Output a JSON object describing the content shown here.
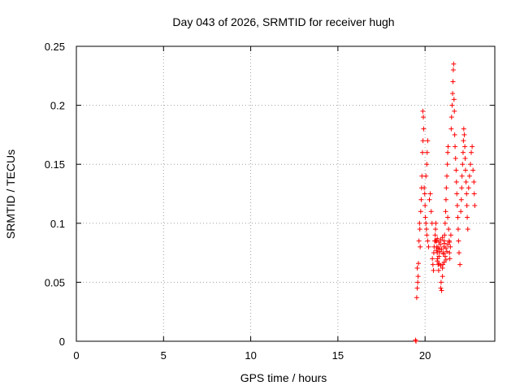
{
  "chart_data": {
    "type": "scatter",
    "title": "Day 043 of 2026, SRMTID for receiver hugh",
    "xlabel": "GPS time / hours",
    "ylabel": "SRMTID / TECUs",
    "xlim": [
      0,
      24
    ],
    "ylim": [
      0,
      0.25
    ],
    "xticks": [
      0,
      5,
      10,
      15,
      20
    ],
    "xtick_labels": [
      "0",
      "5",
      "10",
      "15",
      "20"
    ],
    "yticks": [
      0,
      0.05,
      0.1,
      0.15,
      0.2,
      0.25
    ],
    "ytick_labels": [
      "0",
      "0.05",
      "0.1",
      "0.15",
      "0.2",
      "0.25"
    ],
    "grid": true,
    "marker": "+",
    "series": [
      {
        "name": "SRMTID",
        "color": "#ff0000",
        "points": [
          [
            19.45,
            0.001
          ],
          [
            19.48,
            0.0
          ],
          [
            19.52,
            0.037
          ],
          [
            19.55,
            0.045
          ],
          [
            19.58,
            0.05
          ],
          [
            19.6,
            0.055
          ],
          [
            19.55,
            0.062
          ],
          [
            19.62,
            0.066
          ],
          [
            19.65,
            0.085
          ],
          [
            19.7,
            0.095
          ],
          [
            19.68,
            0.1
          ],
          [
            19.75,
            0.11
          ],
          [
            19.78,
            0.12
          ],
          [
            19.72,
            0.08
          ],
          [
            19.8,
            0.13
          ],
          [
            19.82,
            0.14
          ],
          [
            19.85,
            0.16
          ],
          [
            19.88,
            0.17
          ],
          [
            19.9,
            0.19
          ],
          [
            19.87,
            0.195
          ],
          [
            19.92,
            0.18
          ],
          [
            19.95,
            0.13
          ],
          [
            19.98,
            0.125
          ],
          [
            20.0,
            0.115
          ],
          [
            20.02,
            0.105
          ],
          [
            20.05,
            0.1
          ],
          [
            20.08,
            0.095
          ],
          [
            20.1,
            0.09
          ],
          [
            20.05,
            0.14
          ],
          [
            20.1,
            0.15
          ],
          [
            20.12,
            0.16
          ],
          [
            20.15,
            0.17
          ],
          [
            20.15,
            0.085
          ],
          [
            20.2,
            0.08
          ],
          [
            20.25,
            0.12
          ],
          [
            20.3,
            0.125
          ],
          [
            20.35,
            0.11
          ],
          [
            20.4,
            0.1
          ],
          [
            20.42,
            0.07
          ],
          [
            20.45,
            0.065
          ],
          [
            20.48,
            0.06
          ],
          [
            20.5,
            0.075
          ],
          [
            20.52,
            0.08
          ],
          [
            20.55,
            0.085
          ],
          [
            20.58,
            0.09
          ],
          [
            20.6,
            0.095
          ],
          [
            20.62,
            0.1
          ],
          [
            20.65,
            0.085
          ],
          [
            20.68,
            0.08
          ],
          [
            20.7,
            0.075
          ],
          [
            20.72,
            0.07
          ],
          [
            20.75,
            0.065
          ],
          [
            20.78,
            0.06
          ],
          [
            20.8,
            0.072
          ],
          [
            20.85,
            0.078
          ],
          [
            20.88,
            0.082
          ],
          [
            20.9,
            0.045
          ],
          [
            20.92,
            0.05
          ],
          [
            20.95,
            0.043
          ],
          [
            21.0,
            0.055
          ],
          [
            21.02,
            0.065
          ],
          [
            21.05,
            0.075
          ],
          [
            21.08,
            0.08
          ],
          [
            21.1,
            0.085
          ],
          [
            21.12,
            0.09
          ],
          [
            21.15,
            0.1
          ],
          [
            21.18,
            0.11
          ],
          [
            21.2,
            0.12
          ],
          [
            21.22,
            0.13
          ],
          [
            21.25,
            0.14
          ],
          [
            21.28,
            0.15
          ],
          [
            21.3,
            0.16
          ],
          [
            21.32,
            0.165
          ],
          [
            21.3,
            0.105
          ],
          [
            21.35,
            0.095
          ],
          [
            21.38,
            0.085
          ],
          [
            21.4,
            0.075
          ],
          [
            21.42,
            0.07
          ],
          [
            21.45,
            0.08
          ],
          [
            21.48,
            0.09
          ],
          [
            21.5,
            0.18
          ],
          [
            21.52,
            0.19
          ],
          [
            21.55,
            0.2
          ],
          [
            21.58,
            0.21
          ],
          [
            21.6,
            0.22
          ],
          [
            21.62,
            0.23
          ],
          [
            21.64,
            0.235
          ],
          [
            21.66,
            0.205
          ],
          [
            21.68,
            0.195
          ],
          [
            21.7,
            0.175
          ],
          [
            21.72,
            0.165
          ],
          [
            21.75,
            0.155
          ],
          [
            21.78,
            0.145
          ],
          [
            21.8,
            0.135
          ],
          [
            21.82,
            0.125
          ],
          [
            21.85,
            0.115
          ],
          [
            21.88,
            0.105
          ],
          [
            21.9,
            0.095
          ],
          [
            21.92,
            0.085
          ],
          [
            21.95,
            0.075
          ],
          [
            22.0,
            0.065
          ],
          [
            22.05,
            0.11
          ],
          [
            22.08,
            0.12
          ],
          [
            22.1,
            0.13
          ],
          [
            22.12,
            0.14
          ],
          [
            22.15,
            0.15
          ],
          [
            22.18,
            0.16
          ],
          [
            22.2,
            0.17
          ],
          [
            22.22,
            0.18
          ],
          [
            22.25,
            0.175
          ],
          [
            22.28,
            0.165
          ],
          [
            22.3,
            0.155
          ],
          [
            22.32,
            0.145
          ],
          [
            22.35,
            0.135
          ],
          [
            22.38,
            0.125
          ],
          [
            22.4,
            0.115
          ],
          [
            22.42,
            0.105
          ],
          [
            22.45,
            0.095
          ],
          [
            22.5,
            0.13
          ],
          [
            22.55,
            0.14
          ],
          [
            22.6,
            0.15
          ],
          [
            22.65,
            0.16
          ],
          [
            22.7,
            0.165
          ],
          [
            22.75,
            0.145
          ],
          [
            22.8,
            0.135
          ],
          [
            22.82,
            0.125
          ],
          [
            22.85,
            0.115
          ],
          [
            20.6,
            0.085
          ],
          [
            20.7,
            0.087
          ],
          [
            20.8,
            0.084
          ],
          [
            20.9,
            0.086
          ],
          [
            21.0,
            0.088
          ],
          [
            21.1,
            0.083
          ],
          [
            21.2,
            0.079
          ],
          [
            21.3,
            0.082
          ],
          [
            21.4,
            0.084
          ],
          [
            20.65,
            0.077
          ],
          [
            20.75,
            0.079
          ],
          [
            20.85,
            0.076
          ],
          [
            20.95,
            0.078
          ],
          [
            21.05,
            0.074
          ],
          [
            21.15,
            0.072
          ],
          [
            21.25,
            0.076
          ],
          [
            20.7,
            0.068
          ],
          [
            20.8,
            0.066
          ],
          [
            20.9,
            0.064
          ],
          [
            21.0,
            0.062
          ],
          [
            21.1,
            0.067
          ],
          [
            21.2,
            0.069
          ]
        ]
      }
    ]
  }
}
